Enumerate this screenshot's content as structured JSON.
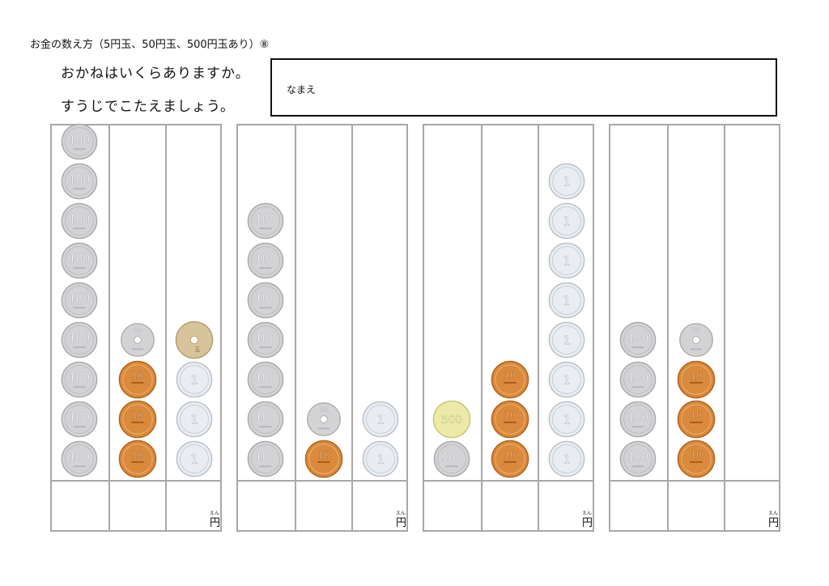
{
  "header": {
    "title": "お金の数え方（5円玉、50円玉、500円玉あり）⑧",
    "instruction_line1": "おかねはいくらありますか。",
    "instruction_line2": "すうじでこたえましょう。"
  },
  "name_box": {
    "label": "なまえ"
  },
  "answer": {
    "unit": "円",
    "unit_ruby": "えん"
  },
  "coin_labels": {
    "c500": "500",
    "c100": "100",
    "c50": "50",
    "c10": "10",
    "c5": "五",
    "c1": "1"
  },
  "colors": {
    "silver": "#d3d3d5",
    "silver_edge": "#a9a9ad",
    "copper": "#d98a3c",
    "copper_edge": "#b0621c",
    "brass": "#d8c49a",
    "aluminum": "#e9edf2",
    "gold500": "#eceaa6",
    "grid": "#a8a8a8"
  },
  "problems": [
    {
      "columns": [
        [
          "c100",
          "c100",
          "c100",
          "c100",
          "c100",
          "c100",
          "c100",
          "c100",
          "c100"
        ],
        [
          "c10",
          "c10",
          "c10",
          "c50"
        ],
        [
          "c1",
          "c1",
          "c1",
          "c5"
        ]
      ]
    },
    {
      "columns": [
        [
          "c100",
          "c100",
          "c100",
          "c100",
          "c100",
          "c100",
          "c100"
        ],
        [
          "c10",
          "c50"
        ],
        [
          "c1",
          "c1"
        ]
      ]
    },
    {
      "columns": [
        [
          "c100",
          "c500"
        ],
        [
          "c10",
          "c10",
          "c10"
        ],
        [
          "c1",
          "c1",
          "c1",
          "c1",
          "c1",
          "c1",
          "c1",
          "c1"
        ]
      ]
    },
    {
      "columns": [
        [
          "c100",
          "c100",
          "c100",
          "c100"
        ],
        [
          "c10",
          "c10",
          "c10",
          "c50"
        ],
        []
      ]
    }
  ]
}
